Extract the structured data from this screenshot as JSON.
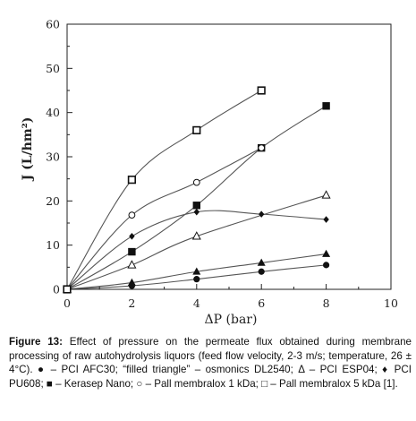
{
  "chart_data": {
    "type": "scatter",
    "xlabel": "ΔP (bar)",
    "ylabel": "J (L/hm²)",
    "xlim": [
      0,
      10
    ],
    "ylim": [
      0,
      60
    ],
    "x_ticks": [
      0,
      2,
      4,
      6,
      8,
      10
    ],
    "y_ticks": [
      0,
      10,
      20,
      30,
      40,
      50,
      60
    ],
    "grid": false,
    "series": [
      {
        "marker": "circle-filled",
        "x": [
          0,
          2,
          4,
          6,
          8
        ],
        "y": [
          0,
          0.8,
          2.3,
          4,
          5.5
        ]
      },
      {
        "marker": "triangle-filled",
        "x": [
          0,
          2,
          4,
          6,
          8
        ],
        "y": [
          0,
          1.5,
          4,
          6,
          8
        ]
      },
      {
        "marker": "triangle-open",
        "x": [
          0,
          2,
          4,
          8
        ],
        "y": [
          0,
          5.5,
          12,
          21.3
        ]
      },
      {
        "marker": "diamond-filled",
        "x": [
          0,
          2,
          4,
          6,
          8
        ],
        "y": [
          0,
          12,
          17.5,
          17,
          15.8
        ]
      },
      {
        "marker": "square-filled",
        "x": [
          0,
          2,
          4,
          6,
          8
        ],
        "y": [
          0,
          8.5,
          19,
          32,
          41.5
        ]
      },
      {
        "marker": "circle-open",
        "x": [
          0,
          2,
          4,
          6
        ],
        "y": [
          0,
          16.8,
          24.2,
          32
        ]
      },
      {
        "marker": "square-open",
        "x": [
          0,
          2,
          4,
          6
        ],
        "y": [
          0,
          24.8,
          36,
          45
        ]
      }
    ]
  },
  "caption": {
    "label": "Figure 13:",
    "text": "Effect of pressure on the permeate flux obtained during membrane processing of raw autohydrolysis liquors (feed flow velocity, 2-3 m/s; temperature, 26 ± 4°C). ● – PCI AFC30; “filled triangle” – osmonics DL2540; Δ – PCI ESP04; ♦ PCI PU608; ■ – Kerasep Nano; ○ – Pall membralox 1 kDa; □ – Pall membralox 5 kDa [1]."
  },
  "style": {
    "axis_color": "#222222",
    "line_color": "#555555",
    "marker_color": "#111111"
  }
}
